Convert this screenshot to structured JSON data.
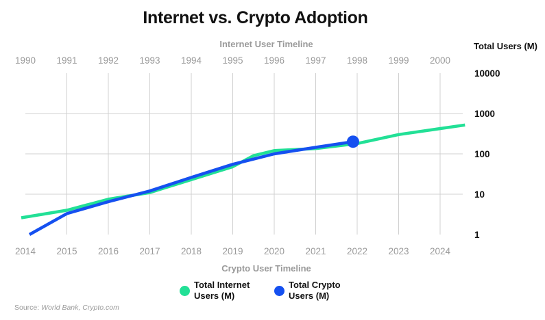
{
  "chart_data": {
    "type": "line",
    "title": "Internet vs. Crypto Adoption",
    "top_axis_title": "Internet User Timeline",
    "bottom_axis_title": "Crypto User Timeline",
    "ylabel": "Total Users (M)",
    "y_scale": "log",
    "ylim": [
      1,
      10000
    ],
    "y_ticks": [
      "10000",
      "1000",
      "100",
      "10",
      "1"
    ],
    "y_tick_values": [
      10000,
      1000,
      100,
      10,
      1
    ],
    "top_x_ticks": [
      "1990",
      "1991",
      "1992",
      "1993",
      "1994",
      "1995",
      "1996",
      "1997",
      "1998",
      "1999",
      "2000"
    ],
    "bottom_x_ticks": [
      "2014",
      "2015",
      "2016",
      "2017",
      "2018",
      "2019",
      "2020",
      "2021",
      "2022",
      "2023",
      "2024"
    ],
    "grid": true,
    "legend_position": "bottom-center",
    "series": [
      {
        "name": "Total Internet Users (M)",
        "axis": "top",
        "color": "#22e096",
        "x": [
          1989.9,
          1991,
          1992,
          1993,
          1994,
          1995,
          1995.5,
          1996,
          1997,
          1998,
          1999,
          2000.6
        ],
        "values": [
          2.6,
          4,
          7.5,
          11,
          23,
          48,
          90,
          120,
          135,
          180,
          300,
          520
        ]
      },
      {
        "name": "Total Crypto Users (M)",
        "axis": "bottom",
        "color": "#1550f0",
        "x": [
          2014.1,
          2015,
          2016,
          2017,
          2018,
          2019,
          2020,
          2021,
          2021.9
        ],
        "values": [
          1,
          3.3,
          6.5,
          12,
          26,
          55,
          100,
          145,
          200
        ],
        "endpoint_marker": true
      }
    ]
  },
  "legend": {
    "internet_line1": "Total Internet",
    "internet_line2": "Users (M)",
    "crypto_line1": "Total Crypto",
    "crypto_line2": "Users (M)"
  },
  "source": {
    "prefix": "Source: ",
    "text": "World Bank, Crypto.com"
  }
}
